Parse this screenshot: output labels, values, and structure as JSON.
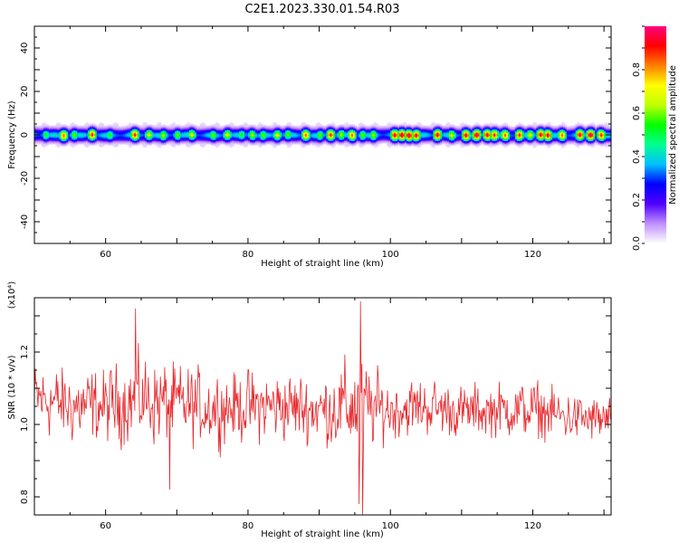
{
  "title": "C2E1.2023.330.01.54.R03",
  "chart_data": [
    {
      "type": "heatmap",
      "xlabel": "Height of straight line (km)",
      "ylabel": "Frequency (Hz)",
      "xlim": [
        50,
        131
      ],
      "ylim": [
        -50,
        50
      ],
      "xticks": [
        60,
        80,
        100,
        120
      ],
      "yticks": [
        -40,
        -20,
        0,
        20,
        40
      ],
      "band_center_hz": 0,
      "band_halfwidth_hz": 3,
      "peak_heights_km": [
        51.5,
        54,
        55.5,
        58,
        60.5,
        64,
        66,
        68,
        70,
        72,
        75,
        77,
        79,
        80.5,
        82,
        84,
        85.5,
        88,
        90,
        91.5,
        93,
        94.5,
        96,
        97.5,
        100.5,
        101.5,
        102.5,
        103.5,
        106.5,
        108.5,
        110.5,
        112,
        113.5,
        114.5,
        116,
        118,
        119.5,
        121,
        122,
        124,
        126.5,
        128,
        129.5
      ],
      "peak_amplitudes": [
        0.55,
        0.85,
        0.6,
        0.9,
        0.55,
        0.9,
        0.7,
        0.65,
        0.6,
        0.7,
        0.6,
        0.7,
        0.55,
        0.65,
        0.6,
        0.7,
        0.6,
        0.85,
        0.6,
        0.9,
        0.65,
        0.85,
        0.6,
        0.65,
        0.95,
        1.0,
        1.0,
        0.95,
        0.95,
        0.7,
        0.95,
        1.0,
        0.95,
        0.9,
        0.85,
        0.9,
        0.7,
        0.95,
        0.95,
        0.85,
        0.95,
        1.0,
        0.9
      ],
      "colorbar": {
        "label": "Normalized spectral amplitude",
        "range": [
          0,
          1
        ],
        "ticks": [
          0.0,
          0.2,
          0.4,
          0.6,
          0.8
        ],
        "colors": [
          "#ffffff",
          "#c090ff",
          "#5000ff",
          "#0000ff",
          "#00c0ff",
          "#00ff90",
          "#00ff00",
          "#c0ff00",
          "#ffff00",
          "#ff8000",
          "#ff0000",
          "#ff0080"
        ]
      }
    },
    {
      "type": "line",
      "xlabel": "Height of straight line (km)",
      "ylabel": "SNR (10 * v/v)",
      "y_multiplier": "(x10⁴)",
      "xlim": [
        50,
        131
      ],
      "ylim": [
        0.75,
        1.35
      ],
      "xticks": [
        60,
        80,
        100,
        120
      ],
      "yticks": [
        0.8,
        1.0,
        1.2
      ],
      "line_color": "#e8282c",
      "x_step_km": 0.1,
      "envelope": {
        "x": [
          50,
          55,
          60,
          65,
          70,
          75,
          80,
          85,
          90,
          95,
          100,
          105,
          110,
          115,
          120,
          125,
          131
        ],
        "low": [
          0.9,
          0.87,
          0.87,
          0.86,
          0.86,
          0.87,
          0.88,
          0.88,
          0.88,
          0.8,
          0.9,
          0.91,
          0.91,
          0.91,
          0.9,
          0.9,
          0.9
        ],
        "high": [
          1.25,
          1.23,
          1.23,
          1.28,
          1.25,
          1.22,
          1.22,
          1.22,
          1.2,
          1.3,
          1.18,
          1.19,
          1.16,
          1.17,
          1.18,
          1.14,
          1.12
        ]
      },
      "extremes": [
        {
          "x": 64.2,
          "y": 1.32
        },
        {
          "x": 69.0,
          "y": 0.82
        },
        {
          "x": 95.8,
          "y": 1.34
        },
        {
          "x": 95.6,
          "y": 0.78
        },
        {
          "x": 96.1,
          "y": 0.75
        }
      ]
    }
  ]
}
